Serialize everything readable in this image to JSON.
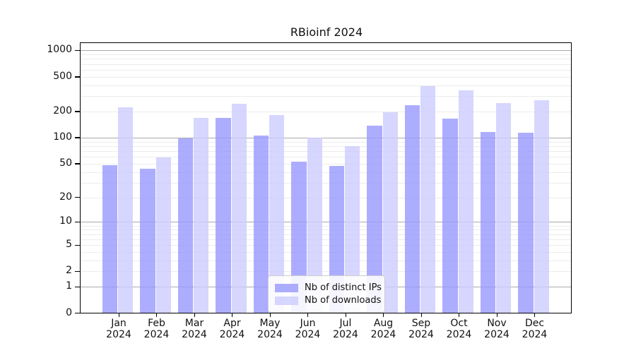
{
  "chart_data": {
    "type": "bar",
    "title": "RBioinf 2024",
    "categories": [
      "Jan",
      "Feb",
      "Mar",
      "Apr",
      "May",
      "Jun",
      "Jul",
      "Aug",
      "Sep",
      "Oct",
      "Nov",
      "Dec"
    ],
    "year": "2024",
    "series": [
      {
        "name": "Nb of distinct IPs",
        "color": "rgba(153,153,255,0.8)",
        "values": [
          48,
          44,
          98,
          168,
          105,
          53,
          47,
          137,
          235,
          165,
          116,
          114
        ]
      },
      {
        "name": "Nb of downloads",
        "color": "rgba(204,204,255,0.8)",
        "values": [
          224,
          59,
          168,
          245,
          181,
          100,
          80,
          195,
          390,
          347,
          248,
          270
        ]
      }
    ],
    "yticks": [
      0,
      1,
      2,
      5,
      10,
      20,
      50,
      100,
      200,
      500,
      1000
    ],
    "yscale": "log1p",
    "ylim": [
      0,
      1300
    ],
    "grid": "on",
    "legend_position": "lower center",
    "xlabel": "",
    "ylabel": ""
  }
}
